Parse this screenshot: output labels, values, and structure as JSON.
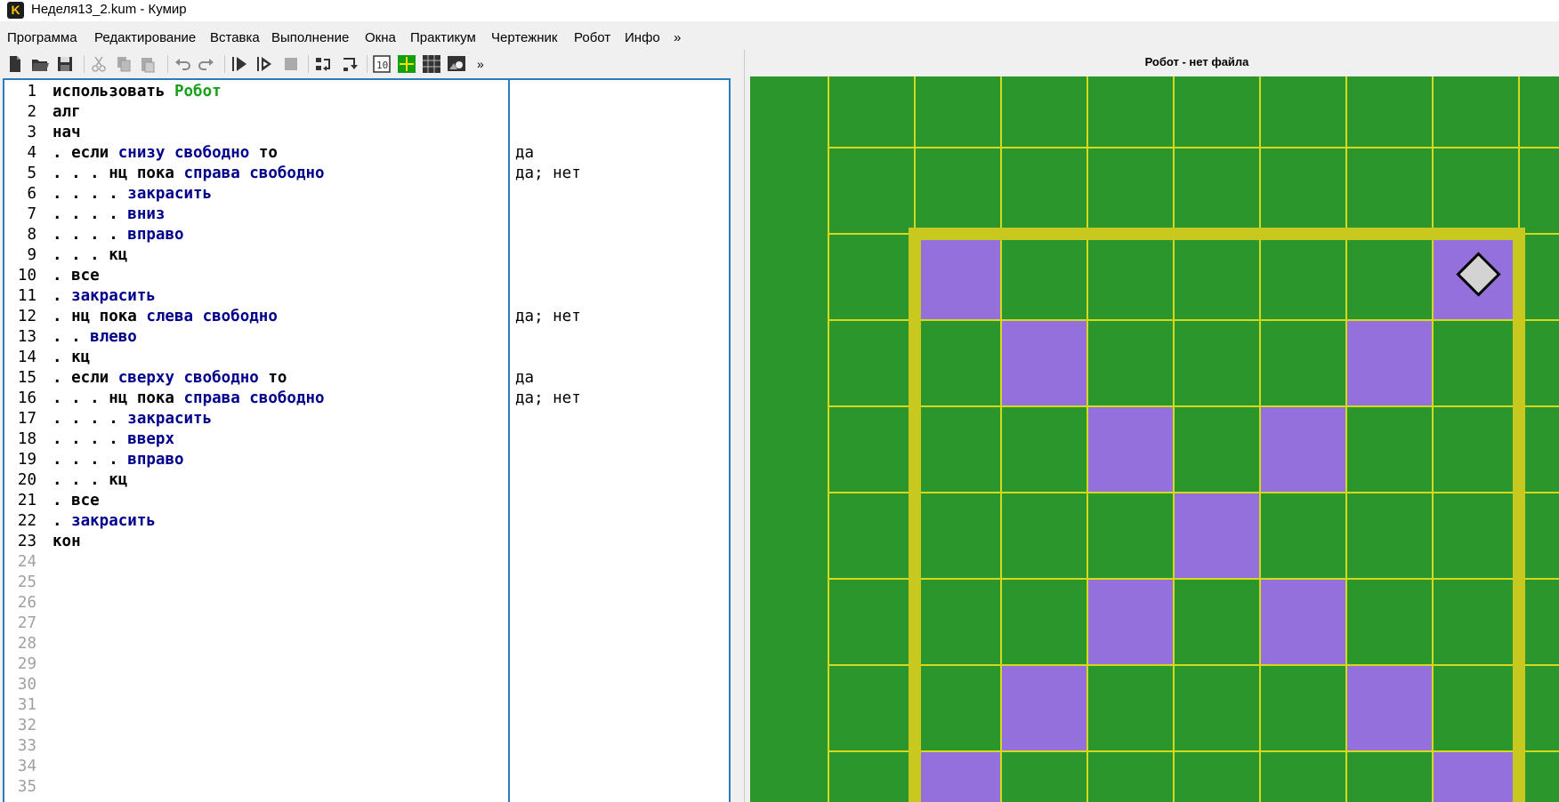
{
  "window": {
    "title": "Неделя13_2.kum - Кумир",
    "app_icon_letter": "K"
  },
  "menu": [
    "Программа",
    "Редактирование",
    "Вставка",
    "Выполнение",
    "Окна",
    "Практикум",
    "Чертежник",
    "Робот",
    "Инфо",
    "»"
  ],
  "toolbar": {
    "icons": [
      "new-file-icon",
      "open-file-icon",
      "save-icon",
      "cut-icon",
      "copy-icon",
      "paste-icon",
      "undo-icon",
      "redo-icon",
      "run-icon",
      "run-debug-icon",
      "stop-icon",
      "step-over-icon",
      "step-into-icon",
      "toggle-output-icon",
      "toggle-grid-icon",
      "toggle-table-icon",
      "robot-image-icon"
    ],
    "more_label": "»"
  },
  "editor": {
    "lines": [
      {
        "n": "1",
        "parts": [
          {
            "t": "использовать ",
            "c": "kw"
          },
          {
            "t": "Робот",
            "c": "mod"
          }
        ],
        "out": ""
      },
      {
        "n": "2",
        "parts": [
          {
            "t": "алг",
            "c": "kw"
          }
        ],
        "out": ""
      },
      {
        "n": "3",
        "parts": [
          {
            "t": "нач",
            "c": "kw"
          }
        ],
        "out": ""
      },
      {
        "n": "4",
        "parts": [
          {
            "t": ". если ",
            "c": "kw"
          },
          {
            "t": "снизу свободно",
            "c": "cmd"
          },
          {
            "t": " то",
            "c": "kw"
          }
        ],
        "out": "да"
      },
      {
        "n": "5",
        "parts": [
          {
            "t": ". . . нц пока ",
            "c": "kw"
          },
          {
            "t": "справа свободно",
            "c": "cmd"
          }
        ],
        "out": "да; нет"
      },
      {
        "n": "6",
        "parts": [
          {
            "t": ". . . . ",
            "c": "kw"
          },
          {
            "t": "закрасить",
            "c": "cmd"
          }
        ],
        "out": ""
      },
      {
        "n": "7",
        "parts": [
          {
            "t": ". . . . ",
            "c": "kw"
          },
          {
            "t": "вниз",
            "c": "cmd"
          }
        ],
        "out": ""
      },
      {
        "n": "8",
        "parts": [
          {
            "t": ". . . . ",
            "c": "kw"
          },
          {
            "t": "вправо",
            "c": "cmd"
          }
        ],
        "out": ""
      },
      {
        "n": "9",
        "parts": [
          {
            "t": ". . . кц",
            "c": "kw"
          }
        ],
        "out": ""
      },
      {
        "n": "10",
        "parts": [
          {
            "t": ". все",
            "c": "kw"
          }
        ],
        "out": ""
      },
      {
        "n": "11",
        "parts": [
          {
            "t": ". ",
            "c": "kw"
          },
          {
            "t": "закрасить",
            "c": "cmd"
          }
        ],
        "out": ""
      },
      {
        "n": "12",
        "parts": [
          {
            "t": ". нц пока ",
            "c": "kw"
          },
          {
            "t": "слева свободно",
            "c": "cmd"
          }
        ],
        "out": "да; нет"
      },
      {
        "n": "13",
        "parts": [
          {
            "t": ". . ",
            "c": "kw"
          },
          {
            "t": "влево",
            "c": "cmd"
          }
        ],
        "out": ""
      },
      {
        "n": "14",
        "parts": [
          {
            "t": ". кц",
            "c": "kw"
          }
        ],
        "out": ""
      },
      {
        "n": "15",
        "parts": [
          {
            "t": ". если ",
            "c": "kw"
          },
          {
            "t": "сверху свободно",
            "c": "cmd"
          },
          {
            "t": " то",
            "c": "kw"
          }
        ],
        "out": "да"
      },
      {
        "n": "16",
        "parts": [
          {
            "t": ". . . нц пока ",
            "c": "kw"
          },
          {
            "t": "справа свободно",
            "c": "cmd"
          }
        ],
        "out": "да; нет"
      },
      {
        "n": "17",
        "parts": [
          {
            "t": ". . . . ",
            "c": "kw"
          },
          {
            "t": "закрасить",
            "c": "cmd"
          }
        ],
        "out": ""
      },
      {
        "n": "18",
        "parts": [
          {
            "t": ". . . . ",
            "c": "kw"
          },
          {
            "t": "вверх",
            "c": "cmd"
          }
        ],
        "out": ""
      },
      {
        "n": "19",
        "parts": [
          {
            "t": ". . . . ",
            "c": "kw"
          },
          {
            "t": "вправо",
            "c": "cmd"
          }
        ],
        "out": ""
      },
      {
        "n": "20",
        "parts": [
          {
            "t": ". . . кц",
            "c": "kw"
          }
        ],
        "out": ""
      },
      {
        "n": "21",
        "parts": [
          {
            "t": ". все",
            "c": "kw"
          }
        ],
        "out": ""
      },
      {
        "n": "22",
        "parts": [
          {
            "t": ". ",
            "c": "kw"
          },
          {
            "t": "закрасить",
            "c": "cmd"
          }
        ],
        "out": ""
      },
      {
        "n": "23",
        "parts": [
          {
            "t": "кон",
            "c": "kw"
          }
        ],
        "out": ""
      }
    ],
    "empty_line_numbers": [
      "24",
      "25",
      "26",
      "27",
      "28",
      "29",
      "30",
      "31",
      "32",
      "33",
      "34",
      "35"
    ]
  },
  "robot": {
    "panel_title": "Робот - нет файла",
    "field_color": "#2b962b",
    "wall_color": "#c8c81e",
    "paint_color": "#9370db",
    "painted_cells": [
      [
        0,
        0
      ],
      [
        6,
        0
      ],
      [
        1,
        1
      ],
      [
        5,
        1
      ],
      [
        2,
        2
      ],
      [
        4,
        2
      ],
      [
        3,
        3
      ],
      [
        2,
        4
      ],
      [
        4,
        4
      ],
      [
        1,
        5
      ],
      [
        5,
        5
      ],
      [
        0,
        6
      ],
      [
        6,
        6
      ]
    ],
    "robot_cell": [
      6,
      0
    ],
    "room": {
      "cols": 7,
      "rows": 7
    }
  }
}
